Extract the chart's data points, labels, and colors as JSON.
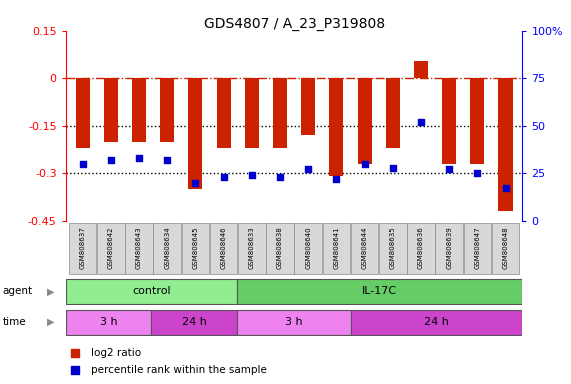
{
  "title": "GDS4807 / A_23_P319808",
  "samples": [
    "GSM808637",
    "GSM808642",
    "GSM808643",
    "GSM808634",
    "GSM808645",
    "GSM808646",
    "GSM808633",
    "GSM808638",
    "GSM808640",
    "GSM808641",
    "GSM808644",
    "GSM808635",
    "GSM808636",
    "GSM808639",
    "GSM808647",
    "GSM808648"
  ],
  "log2_ratios": [
    -0.22,
    -0.2,
    -0.2,
    -0.2,
    -0.35,
    -0.22,
    -0.22,
    -0.22,
    -0.18,
    -0.31,
    -0.27,
    -0.22,
    0.055,
    -0.27,
    -0.27,
    -0.42
  ],
  "percentile_ranks": [
    30,
    32,
    33,
    32,
    20,
    23,
    24,
    23,
    27,
    22,
    30,
    28,
    52,
    27,
    25,
    17
  ],
  "ylim_left": [
    -0.45,
    0.15
  ],
  "ylim_right": [
    0,
    100
  ],
  "yticks_left": [
    0.15,
    0,
    -0.15,
    -0.3,
    -0.45
  ],
  "yticks_right": [
    100,
    75,
    50,
    25,
    0
  ],
  "agent_groups": [
    {
      "label": "control",
      "start": 0,
      "end": 6,
      "color": "#90ee90"
    },
    {
      "label": "IL-17C",
      "start": 6,
      "end": 16,
      "color": "#66cc66"
    }
  ],
  "time_groups": [
    {
      "label": "3 h",
      "start": 0,
      "end": 3,
      "color": "#ee82ee"
    },
    {
      "label": "24 h",
      "start": 3,
      "end": 6,
      "color": "#cc44cc"
    },
    {
      "label": "3 h",
      "start": 6,
      "end": 10,
      "color": "#ee82ee"
    },
    {
      "label": "24 h",
      "start": 10,
      "end": 16,
      "color": "#cc44cc"
    }
  ],
  "bar_color": "#cc2200",
  "dot_color": "#0000cc",
  "zero_line_color": "#cc2200",
  "dotted_line_color": "#000000",
  "background_color": "#ffffff",
  "legend_items": [
    {
      "color": "#cc2200",
      "label": "log2 ratio"
    },
    {
      "color": "#0000cc",
      "label": "percentile rank within the sample"
    }
  ]
}
